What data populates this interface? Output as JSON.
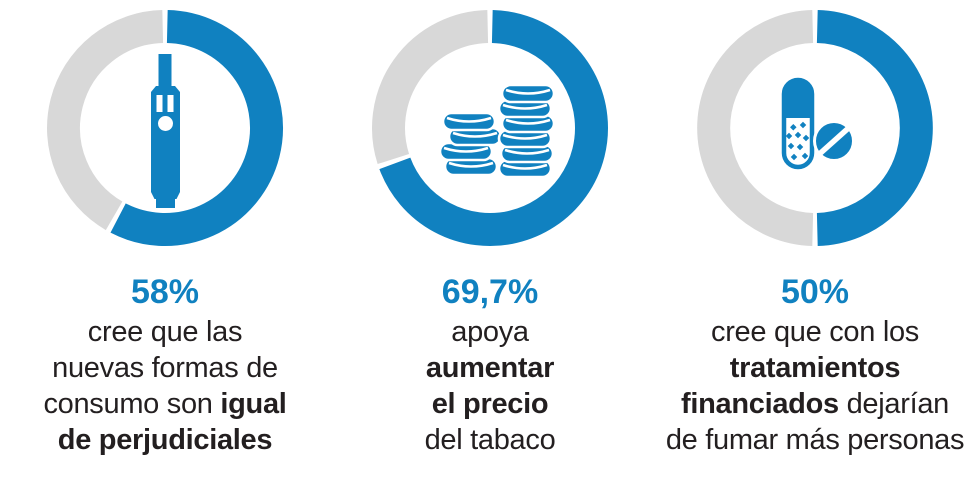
{
  "colors": {
    "value_blue": "#1081c0",
    "track_gray": "#d8d8d8",
    "text_ink": "#231f20"
  },
  "charts": [
    {
      "icon": "vape-icon",
      "percent": 58,
      "percent_label": "58%",
      "lines": [
        [
          {
            "t": "cree que las",
            "b": false
          }
        ],
        [
          {
            "t": "nuevas formas de",
            "b": false
          }
        ],
        [
          {
            "t": "consumo son ",
            "b": false
          },
          {
            "t": "igual",
            "b": true
          }
        ],
        [
          {
            "t": "de perjudiciales",
            "b": true
          }
        ]
      ]
    },
    {
      "icon": "coins-icon",
      "percent": 69.7,
      "percent_label": "69,7%",
      "lines": [
        [
          {
            "t": "apoya",
            "b": false
          }
        ],
        [
          {
            "t": "aumentar",
            "b": true
          }
        ],
        [
          {
            "t": "el precio",
            "b": true
          }
        ],
        [
          {
            "t": "del tabaco",
            "b": false
          }
        ]
      ]
    },
    {
      "icon": "pills-icon",
      "percent": 50,
      "percent_label": "50%",
      "lines": [
        [
          {
            "t": "cree que con los",
            "b": false
          }
        ],
        [
          {
            "t": "tratamientos",
            "b": true
          }
        ],
        [
          {
            "t": "financiados",
            "b": true
          },
          {
            "t": " dejarían",
            "b": false
          }
        ],
        [
          {
            "t": "de fumar más personas",
            "b": false
          }
        ]
      ]
    }
  ],
  "chart_data": {
    "type": "donut",
    "legend_position": "none",
    "start_angle": "12 o'clock, clockwise",
    "colors": {
      "filled": "#1081c0",
      "track": "#d8d8d8"
    },
    "charts": [
      {
        "value": 58,
        "label": "58%",
        "icon": "e-cigarette",
        "description": "cree que las nuevas formas de consumo son igual de perjudiciales"
      },
      {
        "value": 69.7,
        "label": "69,7%",
        "icon": "coin-stacks",
        "description": "apoya aumentar el precio del tabaco"
      },
      {
        "value": 50,
        "label": "50%",
        "icon": "capsule-and-tablet",
        "description": "cree que con los tratamientos financiados dejarían de fumar más personas"
      }
    ]
  }
}
